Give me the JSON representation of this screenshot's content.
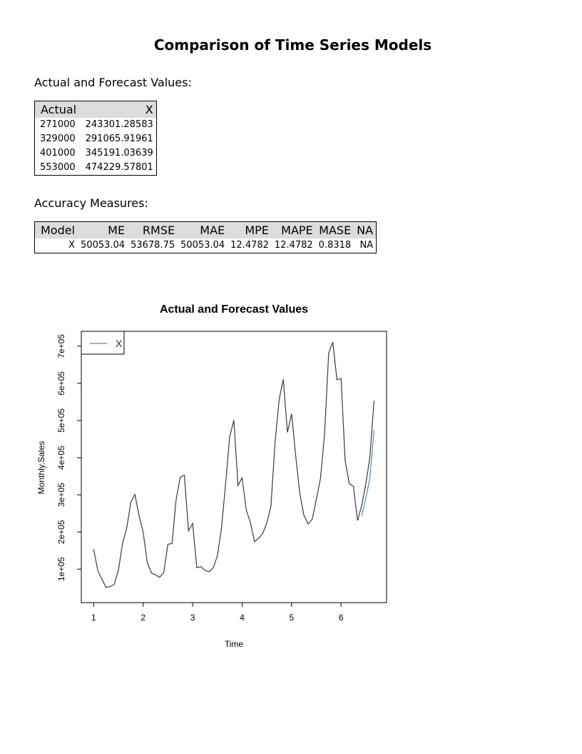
{
  "report": {
    "title": "Comparison of Time Series Models",
    "actual_label": "Actual and Forecast Values:",
    "accuracy_label": "Accuracy Measures:"
  },
  "actual_table": {
    "headers": [
      "Actual",
      "X"
    ],
    "rows": [
      [
        "271000",
        "243301.28583"
      ],
      [
        "329000",
        "291065.91961"
      ],
      [
        "401000",
        "345191.03639"
      ],
      [
        "553000",
        "474229.57801"
      ]
    ]
  },
  "accuracy_table": {
    "headers": [
      "Model",
      "ME",
      "RMSE",
      "MAE",
      "MPE",
      "MAPE",
      "MASE",
      "NA"
    ],
    "rows": [
      [
        "X",
        "50053.04",
        "53678.75",
        "50053.04",
        "12.4782",
        "12.4782",
        "0.8318",
        "NA"
      ]
    ]
  },
  "chart_data": {
    "type": "line",
    "title": "Actual and Forecast Values",
    "xlabel": "Time",
    "ylabel": "Monthly.Sales",
    "xlim": [
      0.75,
      6.92
    ],
    "ylim": [
      10000,
      740000
    ],
    "x_ticks": [
      1,
      2,
      3,
      4,
      5,
      6
    ],
    "y_ticks": [
      100000,
      200000,
      300000,
      400000,
      500000,
      600000,
      700000
    ],
    "y_tick_labels": [
      "1e+05",
      "2e+05",
      "3e+05",
      "4e+05",
      "5e+05",
      "6e+05",
      "7e+05"
    ],
    "legend": {
      "position": "top-left",
      "entries": [
        "X"
      ]
    },
    "series": [
      {
        "role": "actual",
        "color": "#3a3a3a",
        "x_start": 1,
        "x_step": 0.08333,
        "values": [
          154000,
          96000,
          73000,
          51000,
          53000,
          59000,
          97000,
          169000,
          210000,
          280000,
          301000,
          245000,
          200000,
          118000,
          90000,
          85000,
          78000,
          91000,
          167000,
          169000,
          289000,
          347000,
          353000,
          203000,
          223000,
          104000,
          107000,
          97000,
          93000,
          104000,
          136000,
          210000,
          330000,
          457000,
          501000,
          325000,
          346000,
          260000,
          226000,
          174000,
          183000,
          196000,
          225000,
          270000,
          443000,
          558000,
          611000,
          468000,
          518000,
          405000,
          303000,
          245000,
          222000,
          234000,
          287000,
          344000,
          461000,
          681000,
          711000,
          610000,
          613000,
          392000,
          330000,
          323000,
          231000,
          271000,
          329000,
          401000,
          553000
        ]
      },
      {
        "name": "X",
        "role": "forecast",
        "color": "#4a8cc9",
        "x_start": 6.41667,
        "x_step": 0.08333,
        "values": [
          243301.28583,
          291065.91961,
          345191.03639,
          474229.57801
        ]
      }
    ]
  }
}
